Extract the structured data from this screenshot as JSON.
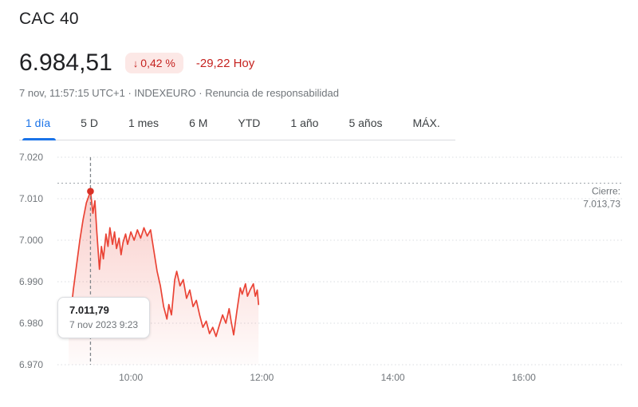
{
  "header": {
    "title": "CAC 40",
    "price": "6.984,51",
    "change_arrow": "↓",
    "change_percent": "0,42 %",
    "change_amount": "-29,22 Hoy",
    "subtitle_prefix": "7 nov, 11:57:15 UTC+1 · INDEXEURO · ",
    "disclaimer": "Renuncia de responsabilidad"
  },
  "tabs": [
    {
      "id": "1-dia",
      "label": "1 día",
      "active": true
    },
    {
      "id": "5-d",
      "label": "5 D",
      "active": false
    },
    {
      "id": "1-mes",
      "label": "1 mes",
      "active": false
    },
    {
      "id": "6-m",
      "label": "6 M",
      "active": false
    },
    {
      "id": "ytd",
      "label": "YTD",
      "active": false
    },
    {
      "id": "1-ano",
      "label": "1 año",
      "active": false
    },
    {
      "id": "5-anos",
      "label": "5 años",
      "active": false
    },
    {
      "id": "max",
      "label": "MÁX.",
      "active": false
    }
  ],
  "colors": {
    "accent_red": "#d93025",
    "line_red": "#ea4335",
    "badge_bg": "#fce8e6",
    "badge_text": "#c5221f",
    "active_tab_blue": "#1a73e8",
    "text_primary": "#202124",
    "text_secondary": "#70757a",
    "gridline": "#dadce0",
    "close_line": "#9aa0a6",
    "marker_line": "#80868b"
  },
  "chart_data": {
    "type": "line",
    "title": "CAC 40 1 día",
    "x_unit": "hour_of_day",
    "x_range": [
      9.0,
      17.5
    ],
    "y_range": [
      6970,
      7020
    ],
    "grid": true,
    "y_ticks": [
      {
        "label": "7.020",
        "value": 7020
      },
      {
        "label": "7.010",
        "value": 7010
      },
      {
        "label": "7.000",
        "value": 7000
      },
      {
        "label": "6.990",
        "value": 6990
      },
      {
        "label": "6.980",
        "value": 6980
      },
      {
        "label": "6.970",
        "value": 6970
      }
    ],
    "x_ticks": [
      {
        "label": "10:00",
        "value": 10
      },
      {
        "label": "12:00",
        "value": 12
      },
      {
        "label": "14:00",
        "value": 14
      },
      {
        "label": "16:00",
        "value": 16
      }
    ],
    "close_line": {
      "label": "Cierre:",
      "value": "7.013,73",
      "value_num": 7013.73
    },
    "marker": {
      "x": 9.383,
      "y": 7011.79,
      "tooltip_value": "7.011,79",
      "tooltip_date": "7 nov 2023 9:23"
    },
    "series": [
      {
        "name": "CAC 40",
        "color": "#ea4335",
        "points": [
          [
            9.05,
            6977.5
          ],
          [
            9.08,
            6982
          ],
          [
            9.12,
            6988
          ],
          [
            9.17,
            6994
          ],
          [
            9.22,
            7000
          ],
          [
            9.27,
            7005
          ],
          [
            9.32,
            7009
          ],
          [
            9.383,
            7011.79
          ],
          [
            9.42,
            7006.5
          ],
          [
            9.45,
            7009.5
          ],
          [
            9.48,
            7002
          ],
          [
            9.52,
            6993
          ],
          [
            9.55,
            6998.5
          ],
          [
            9.58,
            6995.5
          ],
          [
            9.62,
            7001.5
          ],
          [
            9.65,
            6998.5
          ],
          [
            9.68,
            7003
          ],
          [
            9.72,
            6999
          ],
          [
            9.75,
            7002
          ],
          [
            9.78,
            6998
          ],
          [
            9.82,
            7000.5
          ],
          [
            9.85,
            6996.5
          ],
          [
            9.88,
            6999.5
          ],
          [
            9.92,
            7001.5
          ],
          [
            9.95,
            6999
          ],
          [
            10.0,
            7002
          ],
          [
            10.05,
            7000
          ],
          [
            10.1,
            7002.5
          ],
          [
            10.15,
            7000.5
          ],
          [
            10.2,
            7003
          ],
          [
            10.25,
            7001
          ],
          [
            10.3,
            7002.5
          ],
          [
            10.35,
            6997.5
          ],
          [
            10.4,
            6992.5
          ],
          [
            10.45,
            6989
          ],
          [
            10.5,
            6984
          ],
          [
            10.55,
            6981
          ],
          [
            10.58,
            6984.5
          ],
          [
            10.62,
            6982
          ],
          [
            10.67,
            6990.5
          ],
          [
            10.7,
            6992.5
          ],
          [
            10.75,
            6989
          ],
          [
            10.8,
            6990.5
          ],
          [
            10.85,
            6986
          ],
          [
            10.9,
            6988
          ],
          [
            10.95,
            6984
          ],
          [
            11.0,
            6985.5
          ],
          [
            11.05,
            6982
          ],
          [
            11.1,
            6979
          ],
          [
            11.15,
            6980.5
          ],
          [
            11.2,
            6977.5
          ],
          [
            11.25,
            6979
          ],
          [
            11.3,
            6976.8
          ],
          [
            11.35,
            6979.5
          ],
          [
            11.4,
            6982
          ],
          [
            11.45,
            6980
          ],
          [
            11.5,
            6983.5
          ],
          [
            11.53,
            6980.5
          ],
          [
            11.57,
            6977.2
          ],
          [
            11.62,
            6983
          ],
          [
            11.67,
            6988.5
          ],
          [
            11.7,
            6987
          ],
          [
            11.75,
            6989.5
          ],
          [
            11.78,
            6986.5
          ],
          [
            11.82,
            6988
          ],
          [
            11.87,
            6989.5
          ],
          [
            11.9,
            6986.5
          ],
          [
            11.93,
            6988
          ],
          [
            11.95,
            6984.51
          ]
        ]
      }
    ]
  }
}
